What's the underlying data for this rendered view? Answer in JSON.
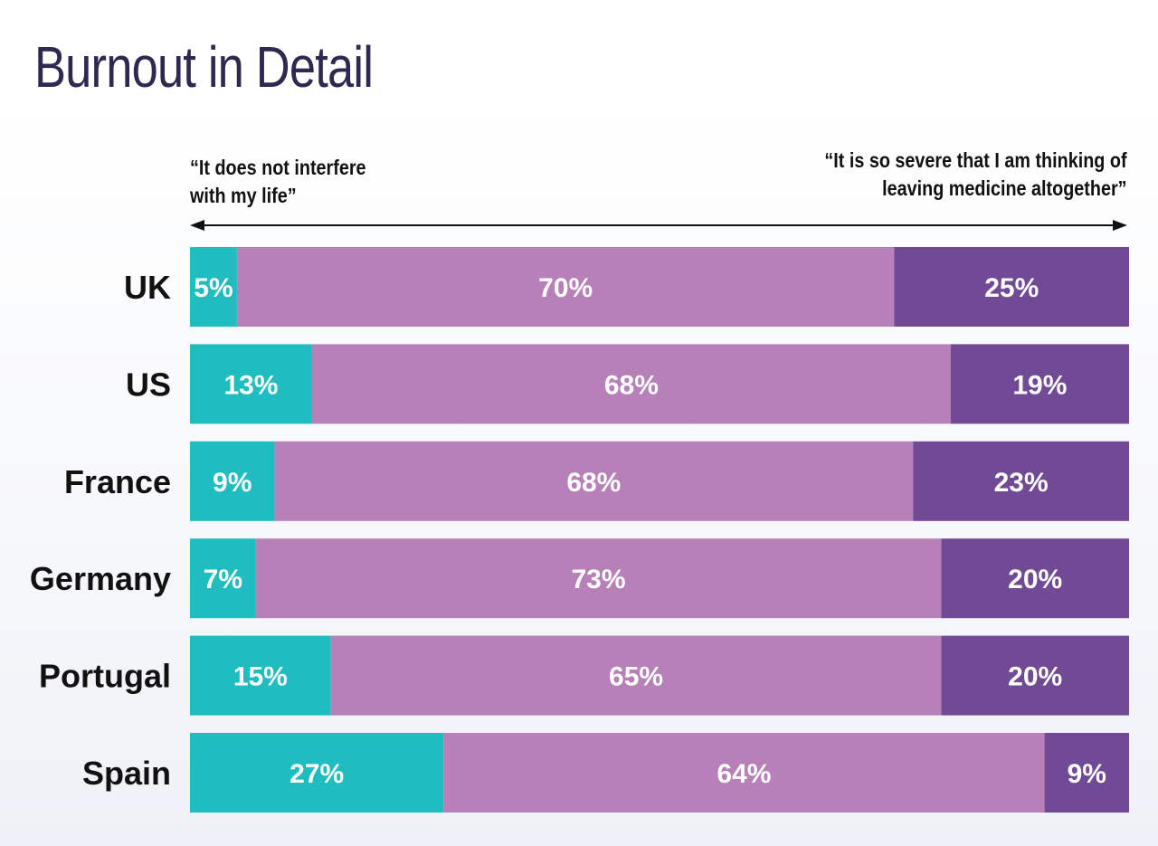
{
  "title": "Burnout in Detail",
  "scale": {
    "left_label_line1": "“It does not interfere",
    "left_label_line2": "with my life”",
    "right_label_line1": "“It is so severe that I am thinking of",
    "right_label_line2": "leaving medicine altogether”"
  },
  "colors": {
    "title": "#2e2a4f",
    "segment_1": "#1fbdc0",
    "segment_2": "#b780b9",
    "segment_3": "#714a96"
  },
  "chart_data": {
    "type": "bar",
    "orientation": "horizontal",
    "stacked": true,
    "categories": [
      "UK",
      "US",
      "France",
      "Germany",
      "Portugal",
      "Spain"
    ],
    "series": [
      {
        "values": [
          5,
          13,
          9,
          7,
          15,
          27
        ]
      },
      {
        "values": [
          70,
          68,
          68,
          73,
          65,
          64
        ]
      },
      {
        "values": [
          25,
          19,
          23,
          20,
          20,
          9
        ]
      }
    ],
    "data_labels": [
      [
        "5%",
        "70%",
        "25%"
      ],
      [
        "13%",
        "68%",
        "19%"
      ],
      [
        "9%",
        "68%",
        "23%"
      ],
      [
        "7%",
        "73%",
        "20%"
      ],
      [
        "15%",
        "65%",
        "20%"
      ],
      [
        "27%",
        "64%",
        "9%"
      ]
    ],
    "xlim": [
      0,
      100
    ],
    "grid": false,
    "legend": "none"
  }
}
